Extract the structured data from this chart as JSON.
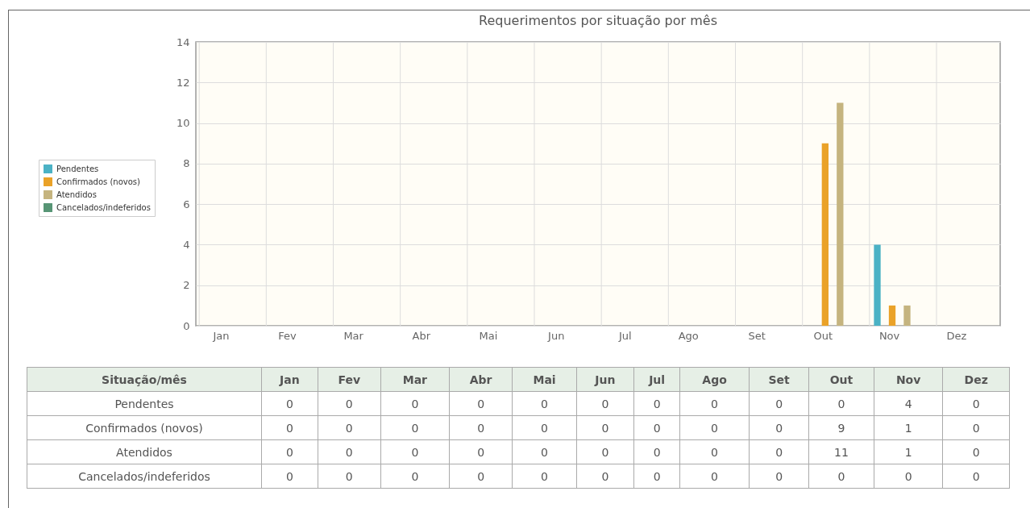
{
  "chart_data": {
    "type": "bar",
    "title": "Requerimentos por situação por mês",
    "categories": [
      "Jan",
      "Fev",
      "Mar",
      "Abr",
      "Mai",
      "Jun",
      "Jul",
      "Ago",
      "Set",
      "Out",
      "Nov",
      "Dez"
    ],
    "series": [
      {
        "name": "Pendentes",
        "color": "#4bb2c5",
        "values": [
          0,
          0,
          0,
          0,
          0,
          0,
          0,
          0,
          0,
          0,
          4,
          0
        ]
      },
      {
        "name": "Confirmados (novos)",
        "color": "#eaa228",
        "values": [
          0,
          0,
          0,
          0,
          0,
          0,
          0,
          0,
          0,
          9,
          1,
          0
        ]
      },
      {
        "name": "Atendidos",
        "color": "#c5b47f",
        "values": [
          0,
          0,
          0,
          0,
          0,
          0,
          0,
          0,
          0,
          11,
          1,
          0
        ]
      },
      {
        "name": "Cancelados/indeferidos",
        "color": "#579575",
        "values": [
          0,
          0,
          0,
          0,
          0,
          0,
          0,
          0,
          0,
          0,
          0,
          0
        ]
      }
    ],
    "ylim": [
      0,
      14
    ],
    "yticks": [
      0,
      2,
      4,
      6,
      8,
      10,
      12,
      14
    ],
    "grid": true,
    "legend": "left",
    "data_labels": true,
    "annotations": [
      "Situação/mês"
    ]
  }
}
